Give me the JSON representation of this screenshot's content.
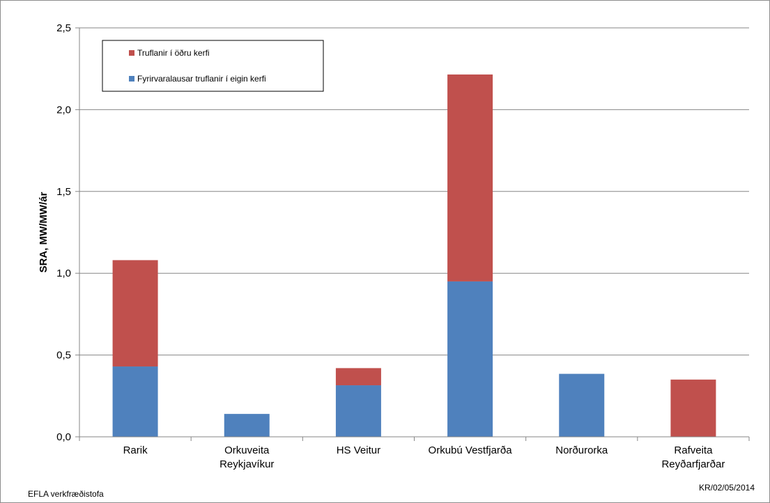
{
  "chart_data": {
    "type": "bar",
    "stacked": true,
    "categories": [
      [
        "Rarik"
      ],
      [
        "Orkuveita",
        "Reykjavíkur"
      ],
      [
        "HS Veitur"
      ],
      [
        "Orkubú Vestfjarða"
      ],
      [
        "Norðurorka"
      ],
      [
        "Rafveita",
        "Reyðarfjarðar"
      ]
    ],
    "series": [
      {
        "name": "Fyrirvaralausar truflanir í eigin kerfi",
        "color": "#4f81bd",
        "values": [
          0.43,
          0.14,
          0.315,
          0.95,
          0.385,
          0.0
        ]
      },
      {
        "name": "Truflanir í öðru kerfi",
        "color": "#c0504d",
        "values": [
          0.65,
          0.0,
          0.105,
          1.265,
          0.0,
          0.35
        ]
      }
    ],
    "ylabel": "SRA, MW/MW/ár",
    "ylim": [
      0,
      2.5
    ],
    "yticks": [
      0.0,
      0.5,
      1.0,
      1.5,
      2.0,
      2.5
    ],
    "ytick_labels": [
      "0,0",
      "0,5",
      "1,0",
      "1,5",
      "2,0",
      "2,5"
    ],
    "grid": true,
    "legend_placement": "top-left",
    "legend_order": [
      1,
      0
    ]
  },
  "footer": {
    "left": "EFLA verkfræðistofa",
    "right": "KR/02/05/2014"
  },
  "colors": {
    "grid": "#868686",
    "axis": "#868686"
  }
}
